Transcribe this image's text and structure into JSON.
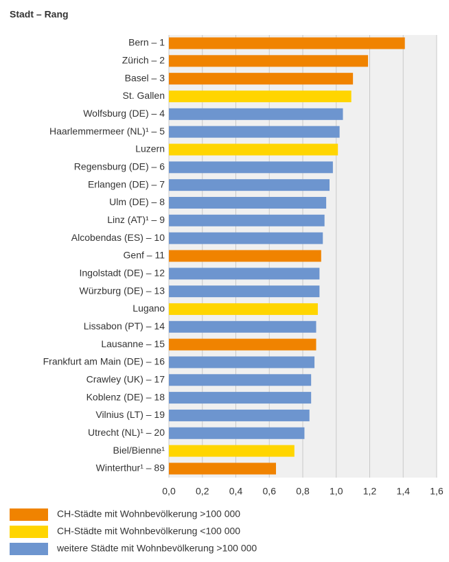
{
  "chart_data": {
    "type": "barh",
    "title": "Stadt – Rang",
    "categories": [
      "Bern – 1",
      "Zürich – 2",
      "Basel – 3",
      "St. Gallen",
      "Wolfsburg (DE) – 4",
      "Haarlemmermeer (NL)¹ – 5",
      "Luzern",
      "Regensburg (DE) – 6",
      "Erlangen (DE) – 7",
      "Ulm (DE) – 8",
      "Linz (AT)¹ – 9",
      "Alcobendas (ES) – 10",
      "Genf – 11",
      "Ingolstadt (DE) – 12",
      "Würzburg (DE) – 13",
      "Lugano",
      "Lissabon (PT) – 14",
      "Lausanne – 15",
      "Frankfurt am Main (DE) – 16",
      "Crawley (UK) – 17",
      "Koblenz (DE) – 18",
      "Vilnius (LT) – 19",
      "Utrecht (NL)¹ – 20",
      "Biel/Bienne¹",
      "Winterthur¹ – 89"
    ],
    "values": [
      1.41,
      1.19,
      1.1,
      1.09,
      1.04,
      1.02,
      1.01,
      0.98,
      0.96,
      0.94,
      0.93,
      0.92,
      0.91,
      0.9,
      0.9,
      0.89,
      0.88,
      0.88,
      0.87,
      0.85,
      0.85,
      0.84,
      0.81,
      0.75,
      0.64
    ],
    "colors": [
      "#f08300",
      "#f08300",
      "#f08300",
      "#ffd500",
      "#6d95cf",
      "#6d95cf",
      "#ffd500",
      "#6d95cf",
      "#6d95cf",
      "#6d95cf",
      "#6d95cf",
      "#6d95cf",
      "#f08300",
      "#6d95cf",
      "#6d95cf",
      "#ffd500",
      "#6d95cf",
      "#f08300",
      "#6d95cf",
      "#6d95cf",
      "#6d95cf",
      "#6d95cf",
      "#6d95cf",
      "#ffd500",
      "#f08300"
    ],
    "legend": [
      {
        "name": "CH-Städte mit Wohnbevölkerung >100 000",
        "color": "#f08300"
      },
      {
        "name": "CH-Städte mit Wohnbevölkerung <100 000",
        "color": "#ffd500"
      },
      {
        "name": "weitere Städte mit Wohnbevölkerung >100 000",
        "color": "#6d95cf"
      }
    ],
    "xlim": [
      0,
      1.6
    ],
    "xticks": [
      {
        "value": 0,
        "label": "0,0"
      },
      {
        "value": 0.2,
        "label": "0,2"
      },
      {
        "value": 0.4,
        "label": "0,4"
      },
      {
        "value": 0.6,
        "label": "0,6"
      },
      {
        "value": 0.8,
        "label": "0,8"
      },
      {
        "value": 1,
        "label": "1,0"
      },
      {
        "value": 1.2,
        "label": "1,2"
      },
      {
        "value": 1.4,
        "label": "1,4"
      },
      {
        "value": 1.6,
        "label": "1,6"
      }
    ],
    "grid": true
  }
}
